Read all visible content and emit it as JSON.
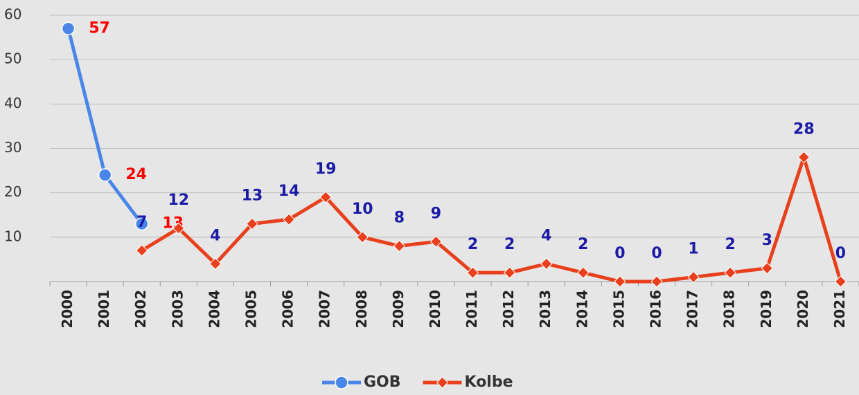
{
  "chart_data": {
    "type": "line",
    "categories": [
      "2000",
      "2001",
      "2002",
      "2003",
      "2004",
      "2005",
      "2006",
      "2007",
      "2008",
      "2009",
      "2010",
      "2011",
      "2012",
      "2013",
      "2014",
      "2015",
      "2016",
      "2017",
      "2018",
      "2019",
      "2020",
      "2021"
    ],
    "series": [
      {
        "name": "GOB",
        "color": "#4a86e8",
        "label_color": "#ff0000",
        "marker": "circle",
        "values": [
          57,
          24,
          13,
          null,
          null,
          null,
          null,
          null,
          null,
          null,
          null,
          null,
          null,
          null,
          null,
          null,
          null,
          null,
          null,
          null,
          null,
          null
        ]
      },
      {
        "name": "Kolbe",
        "color": "#e8401c",
        "label_color": "#1a1aa6",
        "marker": "diamond",
        "values": [
          null,
          null,
          7,
          12,
          4,
          13,
          14,
          19,
          10,
          8,
          9,
          2,
          2,
          4,
          2,
          0,
          0,
          1,
          2,
          3,
          28,
          0
        ]
      }
    ],
    "ylim": [
      0,
      60
    ],
    "yticks": [
      10,
      20,
      30,
      40,
      50,
      60
    ],
    "grid": true,
    "legend": "bottom"
  }
}
